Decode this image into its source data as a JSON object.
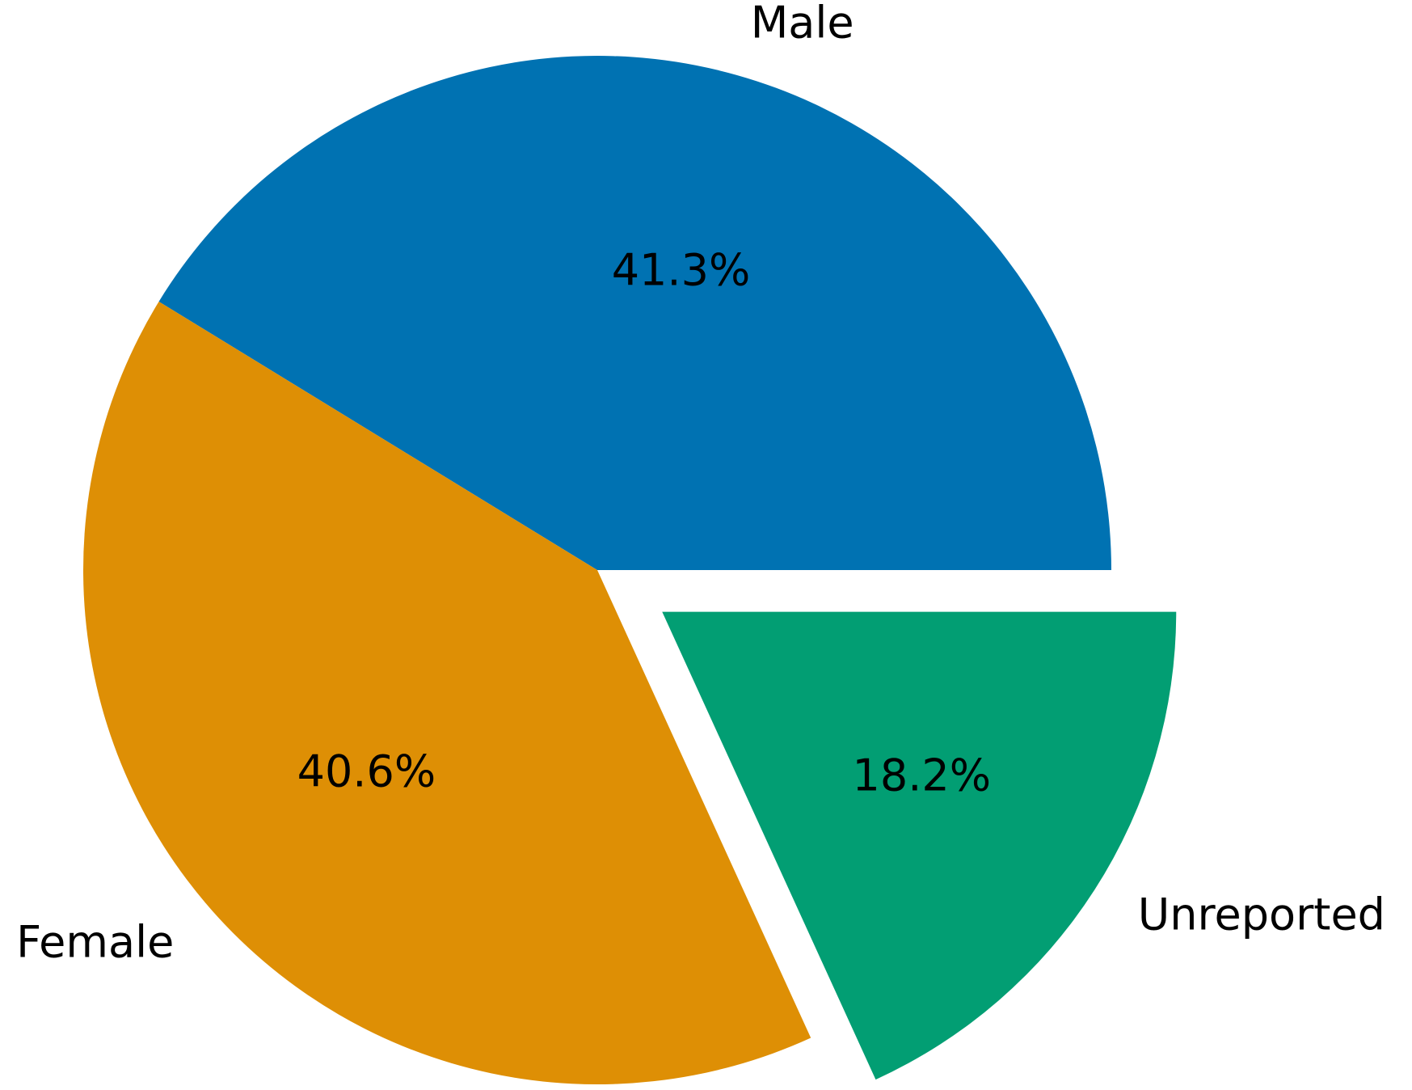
{
  "chart_data": {
    "type": "pie",
    "categories": [
      "Male",
      "Female",
      "Unreported"
    ],
    "values": [
      41.3,
      40.6,
      18.2
    ],
    "value_labels": [
      "41.3%",
      "40.6%",
      "18.2%"
    ],
    "colors": [
      "#0072b2",
      "#de8f05",
      "#029e73"
    ],
    "explode": [
      0,
      0,
      0.15
    ],
    "startangle": 0
  }
}
